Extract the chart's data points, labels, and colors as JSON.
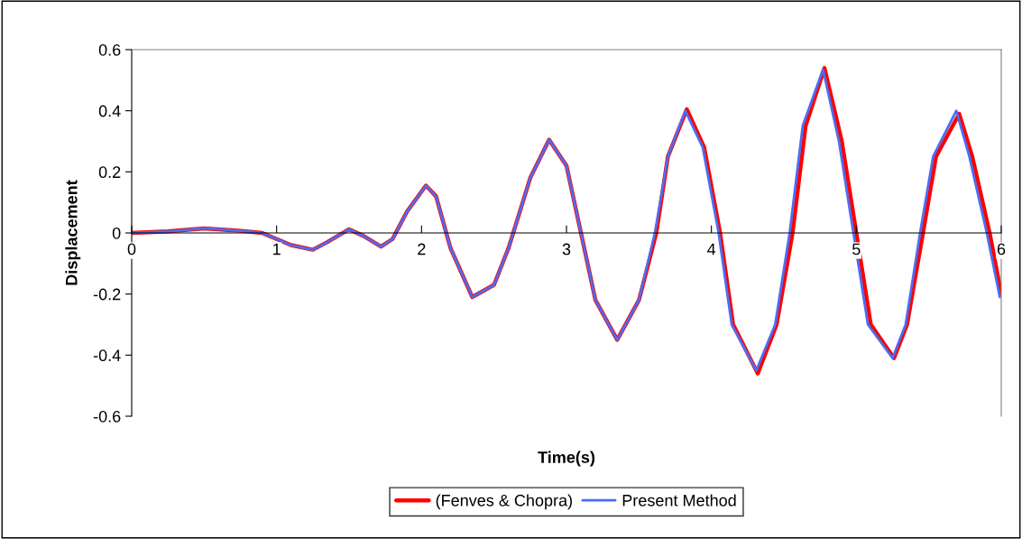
{
  "chart_data": {
    "type": "line",
    "xlabel": "Time(s)",
    "ylabel": "Displacement",
    "xlim": [
      0,
      6
    ],
    "xticks": [
      0,
      1,
      2,
      3,
      4,
      5,
      6
    ],
    "ylim": [
      -0.6,
      0.6
    ],
    "yticks": [
      0.6,
      0.4,
      0.2,
      0,
      -0.2,
      -0.4,
      -0.6
    ],
    "grid": false,
    "legend": "bottom",
    "marker": "none",
    "line_style": "solid",
    "series": [
      {
        "name": "(Fenves & Chopra)",
        "color": "#ff0000",
        "x": [
          0,
          0.25,
          0.5,
          0.75,
          0.9,
          1.0,
          1.1,
          1.25,
          1.35,
          1.5,
          1.6,
          1.72,
          1.8,
          1.9,
          2.03,
          2.1,
          2.2,
          2.35,
          2.5,
          2.6,
          2.75,
          2.88,
          3.0,
          3.1,
          3.2,
          3.35,
          3.5,
          3.62,
          3.7,
          3.83,
          3.95,
          4.06,
          4.15,
          4.32,
          4.45,
          4.56,
          4.65,
          4.78,
          4.9,
          5.0,
          5.1,
          5.26,
          5.35,
          5.46,
          5.55,
          5.71,
          5.8,
          5.92,
          6.0
        ],
        "values": [
          0,
          0.005,
          0.015,
          0.007,
          0.0,
          -0.02,
          -0.04,
          -0.055,
          -0.03,
          0.012,
          -0.01,
          -0.045,
          -0.02,
          0.07,
          0.155,
          0.12,
          -0.05,
          -0.21,
          -0.17,
          -0.05,
          0.18,
          0.305,
          0.22,
          0.0,
          -0.22,
          -0.35,
          -0.22,
          0.0,
          0.25,
          0.405,
          0.28,
          0.0,
          -0.3,
          -0.46,
          -0.3,
          0.0,
          0.35,
          0.54,
          0.3,
          0.0,
          -0.3,
          -0.41,
          -0.3,
          0.0,
          0.25,
          0.39,
          0.25,
          0.0,
          -0.2
        ]
      },
      {
        "name": "Present Method",
        "color": "#4a6ef5",
        "x": [
          0,
          0.25,
          0.5,
          0.75,
          0.9,
          1.0,
          1.1,
          1.25,
          1.35,
          1.5,
          1.6,
          1.72,
          1.8,
          1.9,
          2.03,
          2.1,
          2.2,
          2.35,
          2.5,
          2.6,
          2.75,
          2.88,
          3.0,
          3.1,
          3.2,
          3.35,
          3.5,
          3.61,
          3.7,
          3.82,
          3.94,
          4.05,
          4.14,
          4.31,
          4.44,
          4.54,
          4.63,
          4.77,
          4.88,
          4.98,
          5.08,
          5.25,
          5.34,
          5.44,
          5.53,
          5.69,
          5.78,
          5.9,
          5.99
        ],
        "values": [
          0,
          0.005,
          0.015,
          0.007,
          0.0,
          -0.02,
          -0.04,
          -0.055,
          -0.03,
          0.012,
          -0.01,
          -0.045,
          -0.02,
          0.07,
          0.155,
          0.12,
          -0.05,
          -0.21,
          -0.17,
          -0.05,
          0.18,
          0.305,
          0.22,
          0.0,
          -0.22,
          -0.35,
          -0.22,
          0.0,
          0.25,
          0.4,
          0.28,
          0.0,
          -0.3,
          -0.45,
          -0.3,
          0.0,
          0.35,
          0.535,
          0.3,
          0.0,
          -0.3,
          -0.41,
          -0.3,
          0.0,
          0.25,
          0.4,
          0.25,
          0.0,
          -0.21
        ]
      }
    ]
  }
}
